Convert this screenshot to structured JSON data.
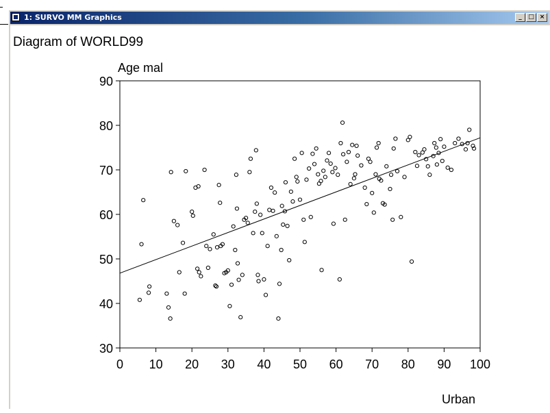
{
  "window": {
    "title": "1: SURVO MM Graphics",
    "buttons": {
      "minimize": "_",
      "maximize": "□",
      "close": "×"
    }
  },
  "chart_data": {
    "type": "scatter",
    "title": "Diagram of WORLD99",
    "xlabel": "Urban",
    "ylabel": "Age mal",
    "xlim": [
      0,
      100
    ],
    "ylim": [
      30,
      90
    ],
    "xticks": [
      "0",
      "10",
      "20",
      "30",
      "40",
      "50",
      "60",
      "70",
      "80",
      "90",
      "100"
    ],
    "yticks": [
      "30",
      "40",
      "50",
      "60",
      "70",
      "80",
      "90"
    ],
    "grid": false,
    "regression_line": {
      "x": [
        0,
        100
      ],
      "y": [
        46.8,
        77.2
      ]
    },
    "points": [
      [
        5.5,
        40.8
      ],
      [
        6,
        53.3
      ],
      [
        6.5,
        63.2
      ],
      [
        8,
        42.4
      ],
      [
        8.2,
        43.8
      ],
      [
        13,
        42.2
      ],
      [
        13.5,
        39.1
      ],
      [
        14,
        36.6
      ],
      [
        14.2,
        69.5
      ],
      [
        15,
        58.5
      ],
      [
        16,
        57.6
      ],
      [
        16.5,
        47
      ],
      [
        17.5,
        53.6
      ],
      [
        18,
        42.2
      ],
      [
        18.3,
        69.7
      ],
      [
        20,
        60.6
      ],
      [
        20.3,
        59.7
      ],
      [
        21,
        66
      ],
      [
        21.5,
        47.8
      ],
      [
        21.8,
        66.3
      ],
      [
        22,
        47
      ],
      [
        22.5,
        46.1
      ],
      [
        23.5,
        70
      ],
      [
        24,
        52.9
      ],
      [
        24.5,
        48
      ],
      [
        25,
        52.2
      ],
      [
        26,
        55.5
      ],
      [
        26.5,
        44
      ],
      [
        26.8,
        43.8
      ],
      [
        27,
        52.6
      ],
      [
        27.5,
        66.6
      ],
      [
        27.8,
        62.6
      ],
      [
        28,
        52.9
      ],
      [
        28.5,
        53.3
      ],
      [
        29,
        46.8
      ],
      [
        29.5,
        47
      ],
      [
        30,
        47.4
      ],
      [
        30.5,
        39.4
      ],
      [
        31,
        44.2
      ],
      [
        31.5,
        57.3
      ],
      [
        32,
        52
      ],
      [
        32.3,
        68.9
      ],
      [
        32.5,
        61.3
      ],
      [
        32.7,
        49
      ],
      [
        33,
        45.3
      ],
      [
        33.5,
        36.9
      ],
      [
        34,
        46.4
      ],
      [
        34.5,
        58.8
      ],
      [
        35,
        59.2
      ],
      [
        35.5,
        58.1
      ],
      [
        36,
        69.5
      ],
      [
        36.3,
        72.5
      ],
      [
        37,
        55.8
      ],
      [
        37.5,
        60.6
      ],
      [
        37.8,
        74.4
      ],
      [
        38,
        62.4
      ],
      [
        38.3,
        46.4
      ],
      [
        38.5,
        45
      ],
      [
        39,
        59.9
      ],
      [
        39.5,
        55.8
      ],
      [
        40,
        45.4
      ],
      [
        40.5,
        41.9
      ],
      [
        41,
        52.9
      ],
      [
        41.5,
        61
      ],
      [
        42,
        66
      ],
      [
        42.5,
        60.8
      ],
      [
        43,
        64.9
      ],
      [
        43.5,
        55.1
      ],
      [
        44,
        36.6
      ],
      [
        44.3,
        44.4
      ],
      [
        44.8,
        52
      ],
      [
        45,
        61.9
      ],
      [
        45.3,
        57.7
      ],
      [
        45.8,
        60.7
      ],
      [
        46,
        67.2
      ],
      [
        46.5,
        57.4
      ],
      [
        47,
        49.7
      ],
      [
        47.5,
        65.1
      ],
      [
        48,
        62.9
      ],
      [
        48.5,
        72.5
      ],
      [
        49,
        68.4
      ],
      [
        49.3,
        67.4
      ],
      [
        50,
        63.3
      ],
      [
        50.5,
        73.8
      ],
      [
        51,
        58.8
      ],
      [
        51.3,
        53.8
      ],
      [
        51.8,
        67.8
      ],
      [
        52.5,
        70.3
      ],
      [
        53,
        59.4
      ],
      [
        53.5,
        73.6
      ],
      [
        54,
        71.3
      ],
      [
        54.5,
        74.8
      ],
      [
        55,
        69
      ],
      [
        55.3,
        66.9
      ],
      [
        55.8,
        67.5
      ],
      [
        56,
        47.5
      ],
      [
        56.5,
        69.8
      ],
      [
        57,
        68.4
      ],
      [
        57.5,
        72.1
      ],
      [
        58,
        73.8
      ],
      [
        58.5,
        71.4
      ],
      [
        59,
        69.5
      ],
      [
        59.3,
        57.9
      ],
      [
        59.8,
        70.4
      ],
      [
        60.5,
        68.9
      ],
      [
        61,
        45.4
      ],
      [
        61.3,
        76
      ],
      [
        61.8,
        80.6
      ],
      [
        62,
        73.5
      ],
      [
        62.5,
        58.8
      ],
      [
        63,
        71.8
      ],
      [
        63.5,
        74
      ],
      [
        64,
        66.8
      ],
      [
        64.5,
        75.6
      ],
      [
        65,
        68.1
      ],
      [
        65.3,
        69
      ],
      [
        65.7,
        75.4
      ],
      [
        66,
        73.2
      ],
      [
        67,
        71
      ],
      [
        68,
        66
      ],
      [
        68.5,
        62.3
      ],
      [
        69,
        72.5
      ],
      [
        69.5,
        71.8
      ],
      [
        70,
        64.8
      ],
      [
        70.5,
        60.4
      ],
      [
        71,
        69
      ],
      [
        71.3,
        75
      ],
      [
        71.8,
        76
      ],
      [
        72,
        68
      ],
      [
        72.5,
        67.6
      ],
      [
        73,
        62.5
      ],
      [
        73.5,
        62.2
      ],
      [
        74,
        70.8
      ],
      [
        75,
        65.7
      ],
      [
        75.3,
        68.9
      ],
      [
        75.7,
        58.8
      ],
      [
        76,
        74.8
      ],
      [
        76.5,
        77
      ],
      [
        77,
        69.7
      ],
      [
        78,
        59.4
      ],
      [
        79,
        68.4
      ],
      [
        80,
        76.7
      ],
      [
        80.5,
        77.4
      ],
      [
        81,
        49.4
      ],
      [
        82,
        74
      ],
      [
        82.5,
        70.9
      ],
      [
        83,
        73.3
      ],
      [
        84,
        73.9
      ],
      [
        84.5,
        74.6
      ],
      [
        85,
        72.4
      ],
      [
        85.5,
        70.8
      ],
      [
        86,
        68.9
      ],
      [
        87,
        73.1
      ],
      [
        87.3,
        76
      ],
      [
        87.8,
        75
      ],
      [
        88,
        71.2
      ],
      [
        88.5,
        73.8
      ],
      [
        89,
        76.9
      ],
      [
        89.5,
        72
      ],
      [
        90,
        75.2
      ],
      [
        91,
        70.5
      ],
      [
        92,
        70
      ],
      [
        93,
        76
      ],
      [
        94,
        77
      ],
      [
        95,
        75.8
      ],
      [
        96,
        74.6
      ],
      [
        96.5,
        76
      ],
      [
        97,
        79
      ],
      [
        98,
        75.4
      ],
      [
        98.3,
        74.8
      ]
    ]
  }
}
